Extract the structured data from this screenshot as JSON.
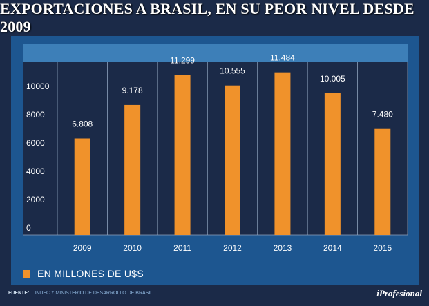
{
  "title": "EXPORTACIONES A BRASIL, EN SU PEOR NIVEL DESDE 2009",
  "chart_data": {
    "type": "bar",
    "title": "EXPORTACIONES A BRASIL, EN SU PEOR NIVEL DESDE 2009",
    "categories": [
      "2009",
      "2010",
      "2011",
      "2012",
      "2013",
      "2014",
      "2015"
    ],
    "values": [
      6808,
      9178,
      11299,
      10555,
      11484,
      10005,
      7480
    ],
    "value_labels": [
      "6.808",
      "9.178",
      "11.299",
      "10.555",
      "11.484",
      "10.005",
      "7.480"
    ],
    "y_ticks": [
      0,
      2000,
      4000,
      6000,
      8000,
      10000
    ],
    "ylim": [
      0,
      12200
    ],
    "xlabel": "",
    "ylabel": "",
    "grid": "vertical",
    "bar_color": "#f0922b"
  },
  "legend": {
    "label": "EN MILLONES DE U$S",
    "color": "#f0922b"
  },
  "footer": {
    "source_label": "FUENTE:",
    "source_text": "INDEC Y MINISTERIO DE DESARROLLO DE BRASIL",
    "brand": "iProfesional"
  }
}
